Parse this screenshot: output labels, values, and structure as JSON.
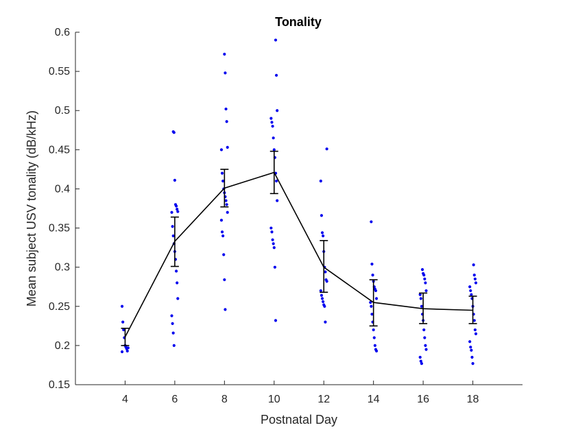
{
  "chart_data": {
    "type": "scatter",
    "title": "Tonality",
    "xlabel": "Postnatal Day",
    "ylabel": "Mean subject USV tonality (dB/kHz)",
    "xlim": [
      2,
      20
    ],
    "ylim": [
      0.15,
      0.6
    ],
    "xticks": [
      "4",
      "6",
      "8",
      "10",
      "12",
      "14",
      "16",
      "18"
    ],
    "yticks": [
      "0.15",
      "0.2",
      "0.25",
      "0.3",
      "0.35",
      "0.4",
      "0.45",
      "0.5",
      "0.55",
      "0.6"
    ],
    "grid": false,
    "legend": "none",
    "colors": {
      "points": "#0000ee",
      "mean_line": "#000000",
      "axes": "#262626"
    },
    "mean": {
      "x": [
        4,
        6,
        8,
        10,
        12,
        14,
        16,
        18
      ],
      "y": [
        0.211,
        0.333,
        0.401,
        0.421,
        0.3,
        0.255,
        0.247,
        0.245
      ],
      "err_low": [
        0.2,
        0.301,
        0.377,
        0.394,
        0.268,
        0.225,
        0.228,
        0.228
      ],
      "err_high": [
        0.222,
        0.364,
        0.425,
        0.448,
        0.334,
        0.284,
        0.267,
        0.263
      ]
    },
    "series": [
      {
        "x": 4,
        "values": [
          0.25,
          0.23,
          0.22,
          0.21,
          0.2,
          0.198,
          0.196,
          0.193,
          0.197,
          0.192
        ]
      },
      {
        "x": 6,
        "values": [
          0.473,
          0.472,
          0.411,
          0.38,
          0.378,
          0.374,
          0.371,
          0.37,
          0.352,
          0.34,
          0.33,
          0.32,
          0.31,
          0.295,
          0.28,
          0.26,
          0.238,
          0.228,
          0.216,
          0.2
        ]
      },
      {
        "x": 8,
        "values": [
          0.572,
          0.548,
          0.502,
          0.486,
          0.453,
          0.45,
          0.42,
          0.41,
          0.4,
          0.395,
          0.39,
          0.385,
          0.38,
          0.37,
          0.36,
          0.345,
          0.34,
          0.316,
          0.284,
          0.246
        ]
      },
      {
        "x": 10,
        "values": [
          0.59,
          0.545,
          0.5,
          0.49,
          0.485,
          0.48,
          0.465,
          0.45,
          0.44,
          0.42,
          0.41,
          0.385,
          0.35,
          0.345,
          0.335,
          0.33,
          0.325,
          0.3,
          0.232
        ]
      },
      {
        "x": 12,
        "values": [
          0.451,
          0.41,
          0.366,
          0.344,
          0.34,
          0.32,
          0.3,
          0.294,
          0.284,
          0.282,
          0.27,
          0.264,
          0.26,
          0.256,
          0.252,
          0.25,
          0.23
        ]
      },
      {
        "x": 14,
        "values": [
          0.358,
          0.304,
          0.29,
          0.282,
          0.275,
          0.272,
          0.27,
          0.26,
          0.255,
          0.25,
          0.24,
          0.23,
          0.22,
          0.21,
          0.2,
          0.195,
          0.193
        ]
      },
      {
        "x": 16,
        "values": [
          0.297,
          0.292,
          0.29,
          0.285,
          0.28,
          0.27,
          0.265,
          0.26,
          0.25,
          0.24,
          0.232,
          0.22,
          0.21,
          0.2,
          0.195,
          0.185,
          0.18,
          0.177
        ]
      },
      {
        "x": 18,
        "values": [
          0.303,
          0.29,
          0.285,
          0.28,
          0.275,
          0.27,
          0.265,
          0.26,
          0.25,
          0.24,
          0.232,
          0.22,
          0.215,
          0.205,
          0.198,
          0.194,
          0.185,
          0.177
        ]
      }
    ]
  }
}
